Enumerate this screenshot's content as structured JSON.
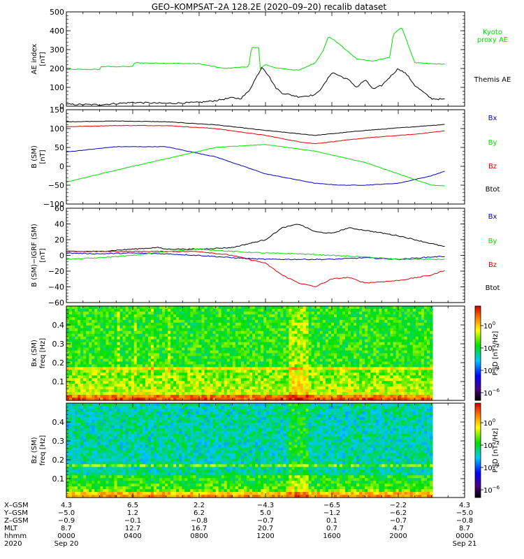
{
  "title": "GEO–KOMPSAT–2A 128.2E (2020–09–20) recalib dataset",
  "colors": {
    "black": "#000000",
    "blue": "#0000c0",
    "green": "#00e000",
    "red": "#e00000"
  },
  "chart_data": [
    {
      "id": "ae",
      "type": "line",
      "ylabel": [
        "AE index",
        "[nT]"
      ],
      "ylim": [
        0,
        500
      ],
      "yticks": [
        0,
        100,
        200,
        300,
        400,
        500
      ],
      "ytick_labels": [
        "0",
        "100",
        "200",
        "300",
        "400",
        "500"
      ],
      "legend": [
        {
          "lines": [
            "Kyoto",
            "proxy AE"
          ],
          "color": "#00e000"
        },
        {
          "lines": [
            "Themis AE"
          ],
          "color": "#000000"
        }
      ],
      "series": [
        {
          "name": "Kyoto proxy AE",
          "color": "#00e000",
          "x": [
            0,
            2,
            2.1,
            4,
            4.1,
            8,
            9.5,
            11,
            11.15,
            11.6,
            11.65,
            12,
            12.5,
            13,
            14,
            15,
            15.5,
            15.8,
            16.3,
            17.5,
            18.5,
            19.5,
            19.7,
            20.2,
            21,
            22,
            24
          ],
          "y": [
            195,
            195,
            210,
            210,
            230,
            225,
            200,
            210,
            310,
            310,
            200,
            220,
            205,
            200,
            190,
            230,
            300,
            370,
            340,
            250,
            240,
            260,
            380,
            420,
            230,
            225,
            220
          ]
        },
        {
          "name": "Themis AE",
          "color": "#000000",
          "x": [
            0,
            2,
            4,
            6,
            8,
            9,
            10,
            10.5,
            11,
            11.3,
            11.8,
            12.2,
            12.6,
            13,
            14,
            15,
            15.5,
            16,
            17,
            17.5,
            18,
            18.5,
            19,
            20,
            20.5,
            21,
            21.5,
            22,
            24
          ],
          "y": [
            10,
            8,
            20,
            15,
            20,
            30,
            45,
            40,
            80,
            130,
            210,
            160,
            100,
            70,
            50,
            60,
            110,
            180,
            140,
            100,
            140,
            90,
            110,
            200,
            170,
            110,
            75,
            40,
            30
          ]
        }
      ]
    },
    {
      "id": "bsm",
      "type": "line",
      "ylabel": [
        "B (SM)",
        "[nT]"
      ],
      "ylim": [
        -100,
        150
      ],
      "yticks": [
        -100,
        -50,
        0,
        50,
        100,
        150
      ],
      "ytick_labels": [
        "−100",
        "−50",
        "0",
        "50",
        "100",
        "150"
      ],
      "legend": [
        {
          "lines": [
            "Bx"
          ],
          "color": "#0000c0"
        },
        {
          "lines": [
            "By"
          ],
          "color": "#00e000"
        },
        {
          "lines": [
            "Bz"
          ],
          "color": "#e00000"
        },
        {
          "lines": [
            "Btot"
          ],
          "color": "#000000"
        }
      ],
      "series": [
        {
          "name": "Btot",
          "color": "#000000",
          "x": [
            0,
            3,
            6,
            9,
            12,
            15,
            18,
            21,
            24
          ],
          "y": [
            118,
            120,
            118,
            110,
            95,
            82,
            95,
            105,
            115
          ]
        },
        {
          "name": "Bz",
          "color": "#e00000",
          "x": [
            0,
            3,
            6,
            9,
            12,
            14,
            15,
            16,
            18,
            21,
            24
          ],
          "y": [
            105,
            108,
            108,
            100,
            82,
            65,
            60,
            65,
            75,
            85,
            100
          ]
        },
        {
          "name": "Bx",
          "color": "#0000c0",
          "x": [
            0,
            3,
            6,
            9,
            12,
            15,
            16.5,
            18,
            20,
            22,
            24
          ],
          "y": [
            38,
            52,
            52,
            25,
            -20,
            -45,
            -50,
            -50,
            -45,
            -25,
            5
          ]
        },
        {
          "name": "By",
          "color": "#00e000",
          "x": [
            0,
            3,
            6,
            9,
            12,
            15,
            18,
            21,
            22,
            24
          ],
          "y": [
            -42,
            -10,
            20,
            50,
            58,
            40,
            10,
            -35,
            -50,
            -55
          ]
        }
      ]
    },
    {
      "id": "bdiff",
      "type": "line",
      "ylabel": [
        "B (SM)−IGRF (SM)",
        "[nT]"
      ],
      "ylim": [
        -60,
        60
      ],
      "yticks": [
        -60,
        -40,
        -20,
        0,
        20,
        40,
        60
      ],
      "ytick_labels": [
        "−60",
        "−40",
        "−20",
        "0",
        "20",
        "40",
        "60"
      ],
      "legend": [
        {
          "lines": [
            "Bx"
          ],
          "color": "#0000c0"
        },
        {
          "lines": [
            "By"
          ],
          "color": "#00e000"
        },
        {
          "lines": [
            "Bz"
          ],
          "color": "#e00000"
        },
        {
          "lines": [
            "Btot"
          ],
          "color": "#000000"
        }
      ],
      "series": [
        {
          "name": "Btot",
          "color": "#000000",
          "x": [
            0,
            2,
            4,
            5.5,
            6,
            8,
            10,
            12,
            13,
            14,
            15,
            16,
            17,
            18,
            20,
            22,
            24
          ],
          "y": [
            5,
            5,
            8,
            10,
            8,
            8,
            10,
            20,
            35,
            40,
            30,
            28,
            35,
            32,
            25,
            15,
            5
          ]
        },
        {
          "name": "Bz",
          "color": "#e00000",
          "x": [
            0,
            2,
            4,
            6,
            8,
            10,
            12,
            13,
            14,
            15,
            16,
            17,
            18,
            20,
            22,
            24
          ],
          "y": [
            5,
            5,
            5,
            5,
            5,
            0,
            -10,
            -25,
            -35,
            -40,
            -30,
            -28,
            -35,
            -32,
            -25,
            -10
          ]
        },
        {
          "name": "Bx",
          "color": "#0000c0",
          "x": [
            0,
            2,
            4,
            6,
            8,
            10,
            12,
            14,
            16,
            18,
            20,
            22,
            24
          ],
          "y": [
            3,
            2,
            3,
            2,
            0,
            -3,
            -5,
            -5,
            -5,
            -3,
            -5,
            -2,
            0
          ]
        },
        {
          "name": "By",
          "color": "#00e000",
          "x": [
            0,
            2,
            4,
            6,
            8,
            10,
            12,
            14,
            16,
            18,
            20,
            22,
            24
          ],
          "y": [
            -5,
            -3,
            0,
            5,
            8,
            5,
            3,
            2,
            0,
            -2,
            -5,
            -5,
            -5
          ]
        }
      ]
    },
    {
      "id": "bx_spec",
      "type": "heatmap",
      "ylabel": [
        "Bx (SM)",
        "freq [Hz]"
      ],
      "ylim": [
        0,
        0.5
      ],
      "yticks": [
        0.1,
        0.2,
        0.3,
        0.4
      ],
      "ytick_labels": [
        "0.1",
        "0.2",
        "0.3",
        "0.4"
      ],
      "colorbar_label": "PSD [nT²/Hz]",
      "colorbar_ticks": [
        {
          "base": "10",
          "exp": "0"
        },
        {
          "base": "10",
          "exp": "−2"
        },
        {
          "base": "10",
          "exp": "−4"
        },
        {
          "base": "10",
          "exp": "−6"
        }
      ]
    },
    {
      "id": "bz_spec",
      "type": "heatmap",
      "ylabel": [
        "Bz (SM)",
        "freq [Hz]"
      ],
      "ylim": [
        0,
        0.5
      ],
      "yticks": [
        0.1,
        0.2,
        0.3,
        0.4
      ],
      "ytick_labels": [
        "0.1",
        "0.2",
        "0.3",
        "0.4"
      ],
      "colorbar_label": "PSD [nT²/Hz]",
      "colorbar_ticks": [
        {
          "base": "10",
          "exp": "0"
        },
        {
          "base": "10",
          "exp": "−2"
        },
        {
          "base": "10",
          "exp": "−4"
        },
        {
          "base": "10",
          "exp": "−6"
        }
      ]
    }
  ],
  "xaxis": {
    "range_hours": [
      0,
      24
    ],
    "tick_hours": [
      0,
      4,
      8,
      12,
      16,
      20,
      24
    ],
    "row_labels": [
      "X–GSM",
      "Y–GSM",
      "Z–GSM",
      "MLT",
      "hhmm",
      "2020"
    ],
    "rows": [
      [
        "4.3",
        "6.5",
        "2.2",
        "−4.3",
        "−6.5",
        "−2.2",
        "4.3"
      ],
      [
        "−5.0",
        "1.2",
        "6.2",
        "5.0",
        "−1.2",
        "−6.2",
        "−5.0"
      ],
      [
        "−0.9",
        "−0.1",
        "−0.8",
        "−0.7",
        "0.1",
        "−0.7",
        "−0.8"
      ],
      [
        "8.7",
        "12.7",
        "16.7",
        "20.7",
        "0.7",
        "4.7",
        "8.7"
      ],
      [
        "0000",
        "0400",
        "0800",
        "1200",
        "1600",
        "2000",
        "0000"
      ],
      [
        "Sep 20",
        "",
        "",
        "",
        "",
        "",
        "Sep 21"
      ]
    ]
  }
}
